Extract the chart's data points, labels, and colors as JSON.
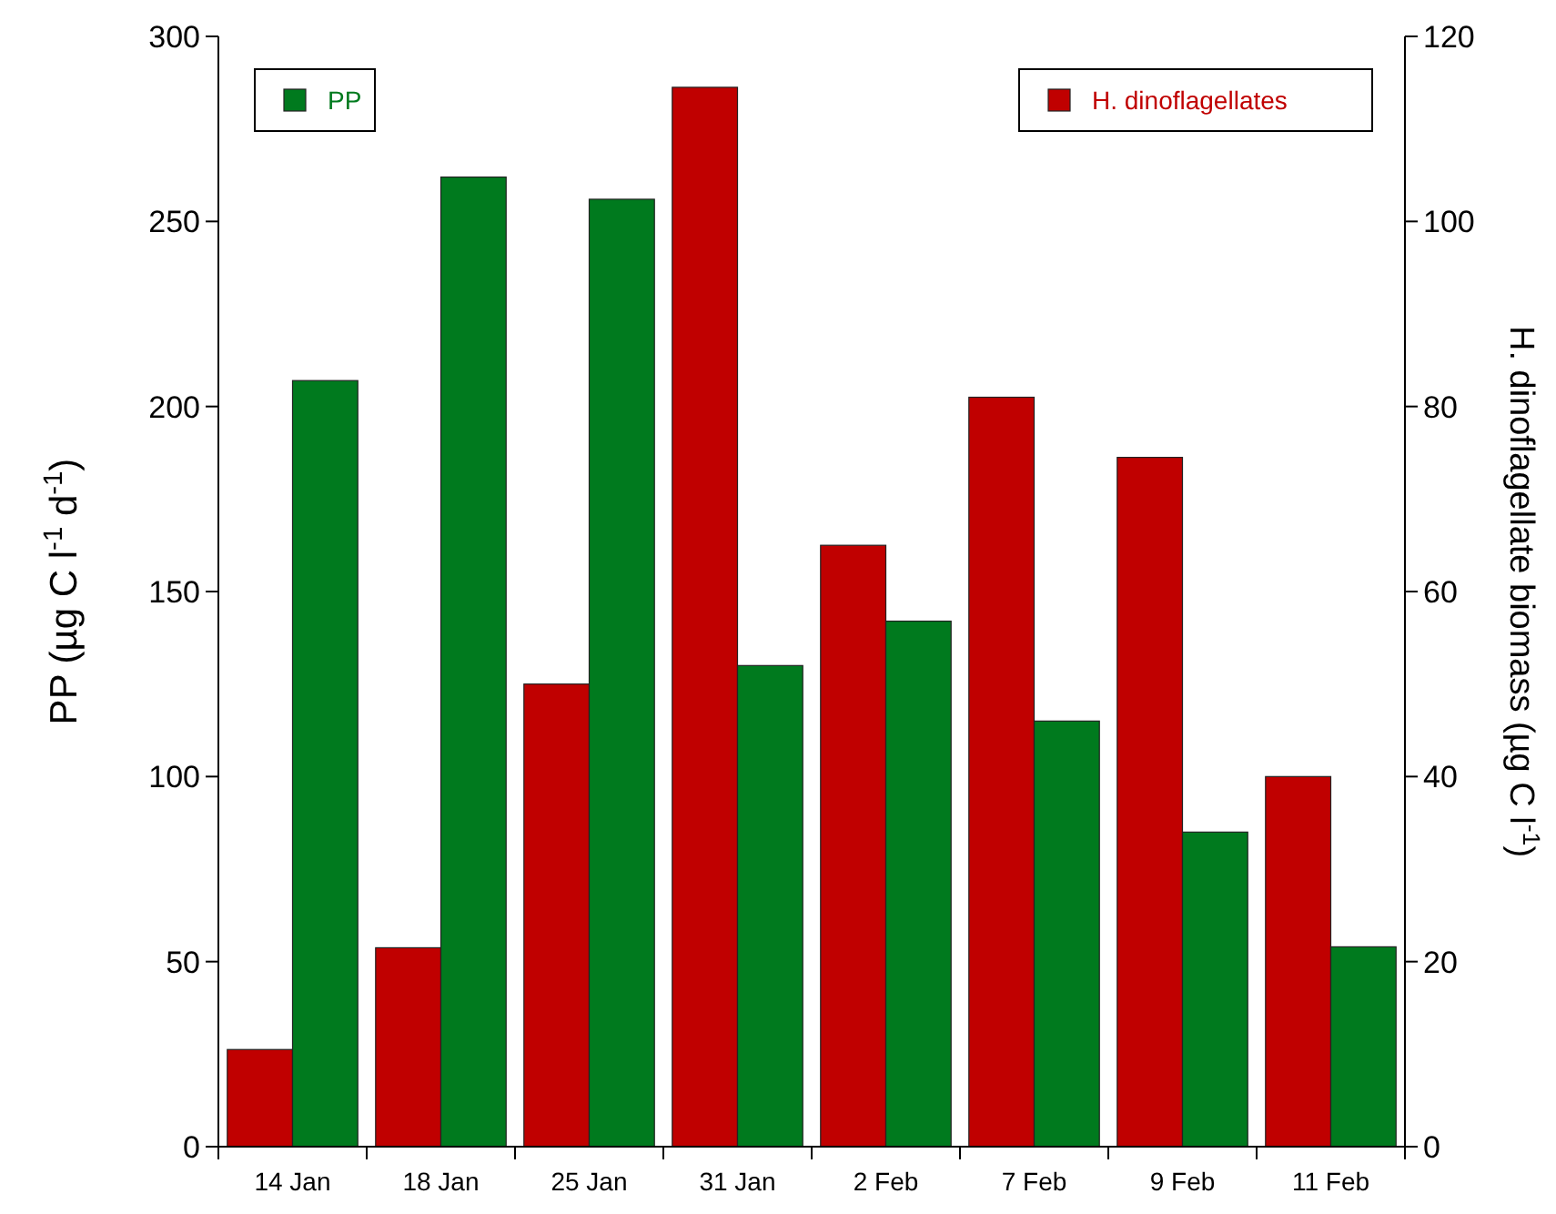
{
  "chart_data": {
    "type": "bar",
    "ylabel": "PP (µg C l$^{-1}$ d$^{-1}$)",
    "y2label": "H. dinoflagellate biomass (µg C l$^{-1}$)",
    "categories": [
      "14 Jan",
      "18 Jan",
      "25 Jan",
      "31 Jan",
      "2 Feb",
      "7 Feb",
      "9 Feb",
      "11 Feb"
    ],
    "series": [
      {
        "name": "H. dinoflagellates",
        "color": "#c00000",
        "axis": "y2",
        "values": [
          10.5,
          21.5,
          50,
          114.5,
          65,
          81,
          74.5,
          40
        ]
      },
      {
        "name": "PP",
        "color": "#007a1e",
        "values": [
          207,
          262,
          256,
          130,
          142,
          115,
          85,
          54
        ]
      }
    ],
    "ylim": [
      0,
      300
    ],
    "yticks": [
      0,
      50,
      100,
      150,
      200,
      250,
      300
    ],
    "y2lim": [
      0,
      120
    ],
    "y2ticks": [
      0,
      20,
      40,
      60,
      80,
      100,
      120
    ],
    "legend": "top",
    "grid": false
  }
}
